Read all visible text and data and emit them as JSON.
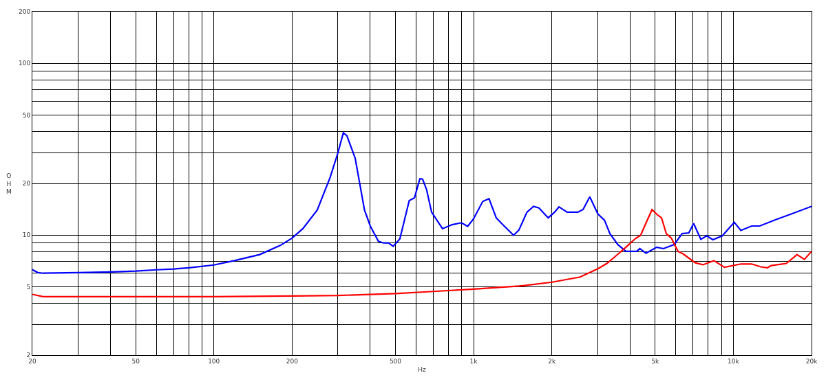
{
  "chart_data": {
    "type": "line",
    "xlabel": "Hz",
    "ylabel": "OHM",
    "log": "xy",
    "grid": true,
    "marker": "none",
    "line_style": "solid",
    "xlim": [
      20,
      20000
    ],
    "ylim": [
      2,
      200
    ],
    "xticks": [
      20,
      {
        "value": 30,
        "label": null
      },
      {
        "value": 40,
        "label": null
      },
      50,
      {
        "value": 60,
        "label": null
      },
      {
        "value": 70,
        "label": null
      },
      {
        "value": 80,
        "label": null
      },
      {
        "value": 90,
        "label": null
      },
      100,
      200,
      {
        "value": 300,
        "label": null
      },
      {
        "value": 400,
        "label": null
      },
      500,
      {
        "value": 600,
        "label": null
      },
      {
        "value": 700,
        "label": null
      },
      {
        "value": 800,
        "label": null
      },
      {
        "value": 900,
        "label": null
      },
      {
        "value": 1000,
        "label": "1k"
      },
      {
        "value": 2000,
        "label": "2k"
      },
      {
        "value": 3000,
        "label": null
      },
      {
        "value": 4000,
        "label": null
      },
      {
        "value": 5000,
        "label": "5k"
      },
      {
        "value": 6000,
        "label": null
      },
      {
        "value": 7000,
        "label": null
      },
      {
        "value": 8000,
        "label": null
      },
      {
        "value": 9000,
        "label": null
      },
      {
        "value": 10000,
        "label": "10k"
      },
      {
        "value": 20000,
        "label": "20k"
      }
    ],
    "yticks": [
      2,
      {
        "value": 3,
        "label": null
      },
      {
        "value": 4,
        "label": null
      },
      5,
      {
        "value": 6,
        "label": null
      },
      {
        "value": 7,
        "label": null
      },
      {
        "value": 8,
        "label": null
      },
      {
        "value": 9,
        "label": null
      },
      10,
      20,
      {
        "value": 30,
        "label": null
      },
      {
        "value": 40,
        "label": null
      },
      50,
      {
        "value": 60,
        "label": null
      },
      {
        "value": 70,
        "label": null
      },
      {
        "value": 80,
        "label": null
      },
      {
        "value": 90,
        "label": null
      },
      100,
      200
    ],
    "series": [
      {
        "color": "#0000ff",
        "x": [
          20,
          21,
          22,
          30,
          40,
          50,
          60,
          70,
          80,
          100,
          120,
          150,
          180,
          200,
          220,
          250,
          280,
          300,
          315,
          325,
          350,
          380,
          400,
          430,
          450,
          470,
          490,
          520,
          565,
          592,
          621,
          636,
          659,
          689,
          759,
          826,
          898,
          948,
          998,
          1084,
          1146,
          1222,
          1295,
          1425,
          1494,
          1604,
          1701,
          1785,
          1937,
          2049,
          2131,
          2290,
          2517,
          2639,
          2800,
          3007,
          3191,
          3348,
          3594,
          3858,
          4247,
          4365,
          4608,
          5068,
          5377,
          5913,
          6350,
          6739,
          7031,
          7494,
          7897,
          8340,
          9068,
          10080,
          10690,
          11760,
          12630,
          14560,
          16780,
          20000
        ],
        "values": [
          6.3,
          6.05,
          6.0,
          6.05,
          6.1,
          6.17,
          6.28,
          6.35,
          6.45,
          6.7,
          7.1,
          7.7,
          8.7,
          9.6,
          10.9,
          14,
          21.6,
          30,
          39.4,
          38,
          28,
          14,
          11.3,
          9.2,
          9.0,
          9.0,
          8.6,
          9.5,
          15.9,
          16.5,
          21.3,
          21.2,
          18.4,
          13.6,
          10.9,
          11.5,
          11.8,
          11.25,
          12.4,
          15.7,
          16.3,
          12.6,
          11.5,
          9.98,
          10.7,
          13.6,
          14.7,
          14.4,
          12.6,
          13.6,
          14.6,
          13.6,
          13.6,
          14.1,
          16.7,
          13.3,
          12.2,
          10.2,
          8.8,
          8.04,
          8.04,
          8.34,
          7.84,
          8.5,
          8.34,
          8.8,
          10.2,
          10.3,
          11.7,
          9.45,
          9.9,
          9.4,
          9.9,
          11.87,
          10.65,
          11.3,
          11.3,
          12.3,
          13.3,
          14.7
        ]
      },
      {
        "color": "#ff0000",
        "x": [
          20,
          22,
          50,
          100,
          200,
          300,
          500,
          700,
          1000,
          1500,
          2006,
          2570,
          3007,
          3260,
          3550,
          3858,
          4204,
          4396,
          4608,
          4862,
          5107,
          5290,
          5519,
          5777,
          6123,
          6417,
          7120,
          7640,
          8415,
          9244,
          10690,
          11760,
          12770,
          13530,
          13980,
          15990,
          17590,
          18770,
          20000
        ],
        "values": [
          4.52,
          4.38,
          4.38,
          4.38,
          4.42,
          4.45,
          4.57,
          4.7,
          4.85,
          5.05,
          5.32,
          5.7,
          6.37,
          6.84,
          7.62,
          8.5,
          9.57,
          9.98,
          11.75,
          14.07,
          13.1,
          12.6,
          10.2,
          9.57,
          8.04,
          7.76,
          6.91,
          6.72,
          7.1,
          6.49,
          6.79,
          6.79,
          6.53,
          6.45,
          6.65,
          6.84,
          7.7,
          7.22,
          8.04
        ]
      }
    ]
  }
}
